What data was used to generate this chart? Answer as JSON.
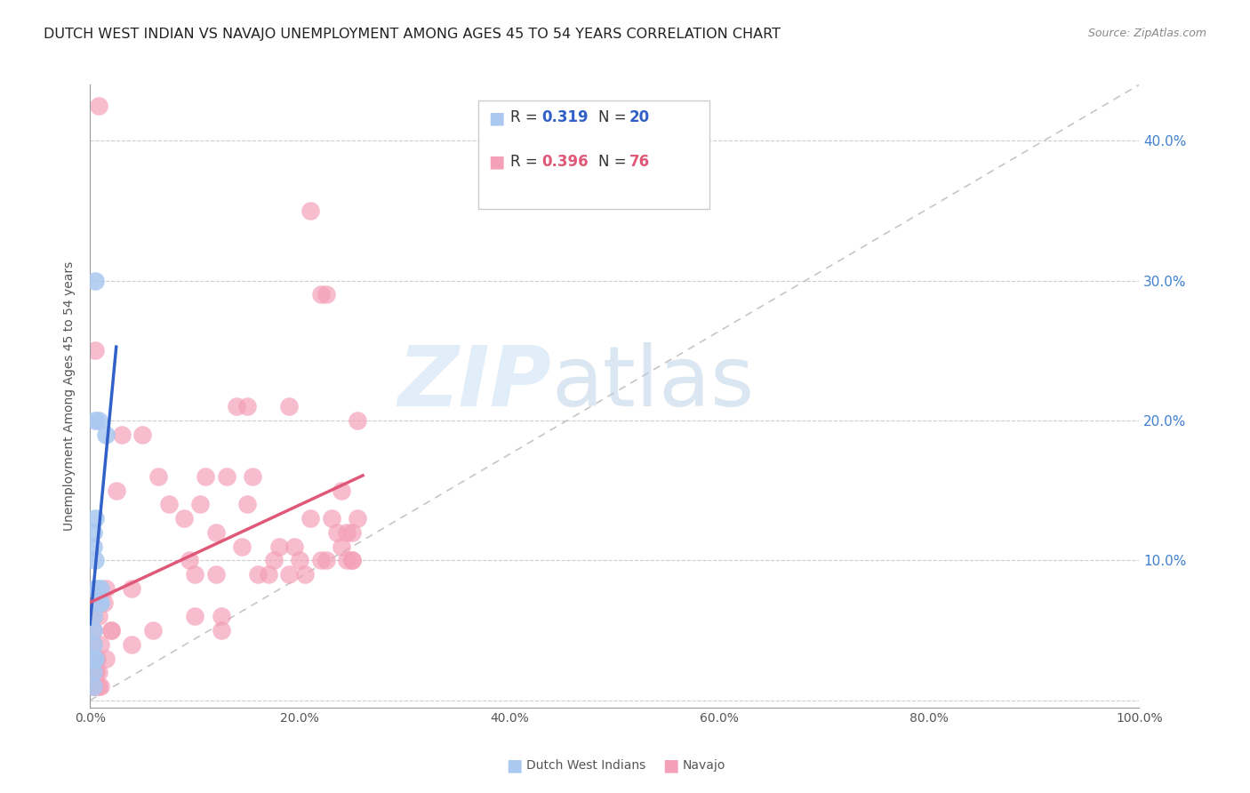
{
  "title": "DUTCH WEST INDIAN VS NAVAJO UNEMPLOYMENT AMONG AGES 45 TO 54 YEARS CORRELATION CHART",
  "source": "Source: ZipAtlas.com",
  "ylabel": "Unemployment Among Ages 45 to 54 years",
  "xlim": [
    0,
    1.0
  ],
  "ylim": [
    -0.005,
    0.44
  ],
  "yticks": [
    0.0,
    0.1,
    0.2,
    0.3,
    0.4
  ],
  "xticks": [
    0.0,
    0.2,
    0.4,
    0.6,
    0.8,
    1.0
  ],
  "xtick_labels": [
    "0.0%",
    "20.0%",
    "40.0%",
    "60.0%",
    "80.0%",
    "100.0%"
  ],
  "ytick_labels": [
    "",
    "10.0%",
    "20.0%",
    "30.0%",
    "40.0%"
  ],
  "background_color": "#ffffff",
  "grid_color": "#cccccc",
  "dwi_color": "#aac8f0",
  "navajo_color": "#f4a0b8",
  "dwi_line_color": "#3060c8",
  "navajo_line_color": "#e05878",
  "ref_line_color": "#c0c0c0",
  "legend_label_dwi": "Dutch West Indians",
  "legend_label_nav": "Navajo",
  "dwi_scatter_x": [
    0.005,
    0.005,
    0.008,
    0.005,
    0.003,
    0.003,
    0.004,
    0.007,
    0.01,
    0.01,
    0.008,
    0.015,
    0.005,
    0.003,
    0.003,
    0.003,
    0.003,
    0.005,
    0.003,
    0.003
  ],
  "dwi_scatter_y": [
    0.3,
    0.2,
    0.2,
    0.13,
    0.12,
    0.11,
    0.08,
    0.08,
    0.08,
    0.07,
    0.07,
    0.19,
    0.1,
    0.06,
    0.05,
    0.04,
    0.03,
    0.03,
    0.02,
    0.01
  ],
  "navajo_scatter_x": [
    0.008,
    0.005,
    0.003,
    0.003,
    0.003,
    0.003,
    0.005,
    0.005,
    0.006,
    0.008,
    0.01,
    0.008,
    0.006,
    0.006,
    0.008,
    0.013,
    0.015,
    0.015,
    0.02,
    0.025,
    0.03,
    0.04,
    0.05,
    0.065,
    0.075,
    0.09,
    0.095,
    0.1,
    0.105,
    0.11,
    0.12,
    0.12,
    0.125,
    0.13,
    0.14,
    0.145,
    0.15,
    0.155,
    0.16,
    0.17,
    0.175,
    0.18,
    0.19,
    0.195,
    0.2,
    0.205,
    0.21,
    0.22,
    0.225,
    0.23,
    0.235,
    0.24,
    0.24,
    0.245,
    0.245,
    0.25,
    0.25,
    0.25,
    0.255,
    0.255,
    0.22,
    0.225,
    0.21,
    0.19,
    0.15,
    0.125,
    0.1,
    0.06,
    0.04,
    0.02,
    0.01,
    0.007,
    0.005,
    0.005,
    0.003,
    0.003
  ],
  "navajo_scatter_y": [
    0.425,
    0.25,
    0.07,
    0.06,
    0.05,
    0.04,
    0.03,
    0.02,
    0.02,
    0.01,
    0.01,
    0.06,
    0.07,
    0.03,
    0.02,
    0.07,
    0.08,
    0.03,
    0.05,
    0.15,
    0.19,
    0.08,
    0.19,
    0.16,
    0.14,
    0.13,
    0.1,
    0.09,
    0.14,
    0.16,
    0.09,
    0.12,
    0.05,
    0.16,
    0.21,
    0.11,
    0.14,
    0.16,
    0.09,
    0.09,
    0.1,
    0.11,
    0.09,
    0.11,
    0.1,
    0.09,
    0.13,
    0.1,
    0.1,
    0.13,
    0.12,
    0.15,
    0.11,
    0.12,
    0.1,
    0.1,
    0.1,
    0.12,
    0.13,
    0.2,
    0.29,
    0.29,
    0.35,
    0.21,
    0.21,
    0.06,
    0.06,
    0.05,
    0.04,
    0.05,
    0.04,
    0.03,
    0.02,
    0.01,
    0.01,
    0.01
  ],
  "watermark_zip": "ZIP",
  "watermark_atlas": "atlas",
  "title_color": "#222222",
  "axis_label_color": "#555555",
  "right_tick_color": "#4080d0",
  "title_fontsize": 11.5,
  "label_fontsize": 10,
  "tick_fontsize": 10,
  "legend_fontsize": 12
}
